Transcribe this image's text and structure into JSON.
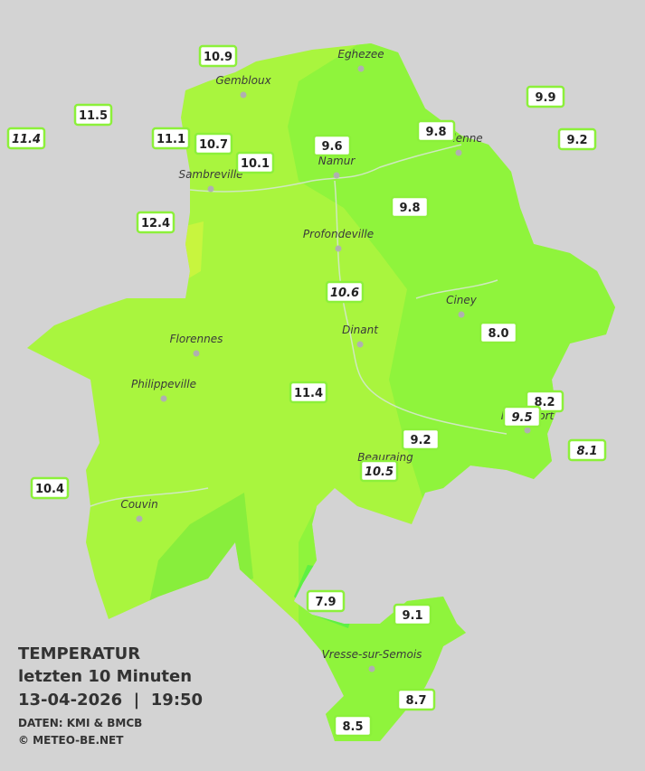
{
  "legend": {
    "title": "TEMPERATUR",
    "subtitle": "letzten 10 Minuten",
    "timestamp": "13-04-2026  |  19:50",
    "source": "DATEN: KMI & BMCB",
    "credit": "© METEO-BE.NET"
  },
  "cities": [
    "Eghezee",
    "Gembloux",
    "Andenne",
    "Namur",
    "Sambreville",
    "Profondeville",
    "Ciney",
    "Dinant",
    "Florennes",
    "Philippeville",
    "Rochefort",
    "Beauraing",
    "Couvin",
    "Vresse-sur-Semois"
  ],
  "stations": [
    "10.9",
    "11.5",
    "11.4",
    "11.1",
    "10.7",
    "10.1",
    "9.6",
    "9.8",
    "9.9",
    "9.2",
    "9.8",
    "12.4",
    "10.6",
    "8.0",
    "11.4",
    "8.2",
    "9.5",
    "9.2",
    "8.1",
    "10.5",
    "10.4",
    "7.9",
    "9.1",
    "8.7",
    "8.5"
  ]
}
